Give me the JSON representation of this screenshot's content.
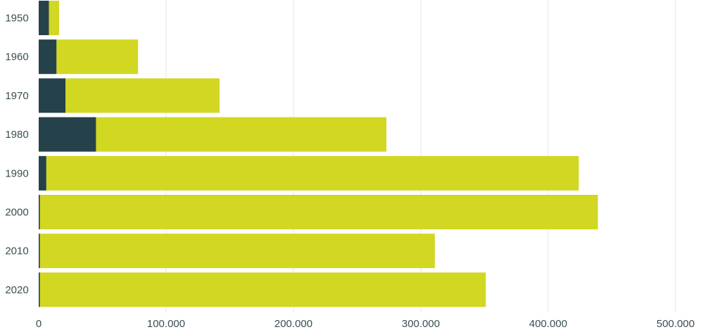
{
  "chart_data": {
    "type": "bar",
    "orientation": "horizontal",
    "stacked": true,
    "title": "",
    "xlabel": "",
    "ylabel": "",
    "categories": [
      "1950",
      "1960",
      "1970",
      "1980",
      "1990",
      "2000",
      "2010",
      "2020"
    ],
    "series": [
      {
        "color": "#25424b",
        "values": [
          8000,
          14000,
          21000,
          45000,
          6000,
          1000,
          1000,
          1000
        ]
      },
      {
        "color": "#d2d722",
        "values": [
          8000,
          64000,
          121000,
          228000,
          418000,
          438000,
          310000,
          350000
        ]
      }
    ],
    "xlim": [
      0,
      500000
    ],
    "x_ticks": [
      0,
      100000,
      200000,
      300000,
      400000,
      500000
    ],
    "x_tick_labels": [
      "0",
      "100.000",
      "200.000",
      "300.000",
      "400.000",
      "500.000"
    ],
    "grid": "vertical"
  }
}
